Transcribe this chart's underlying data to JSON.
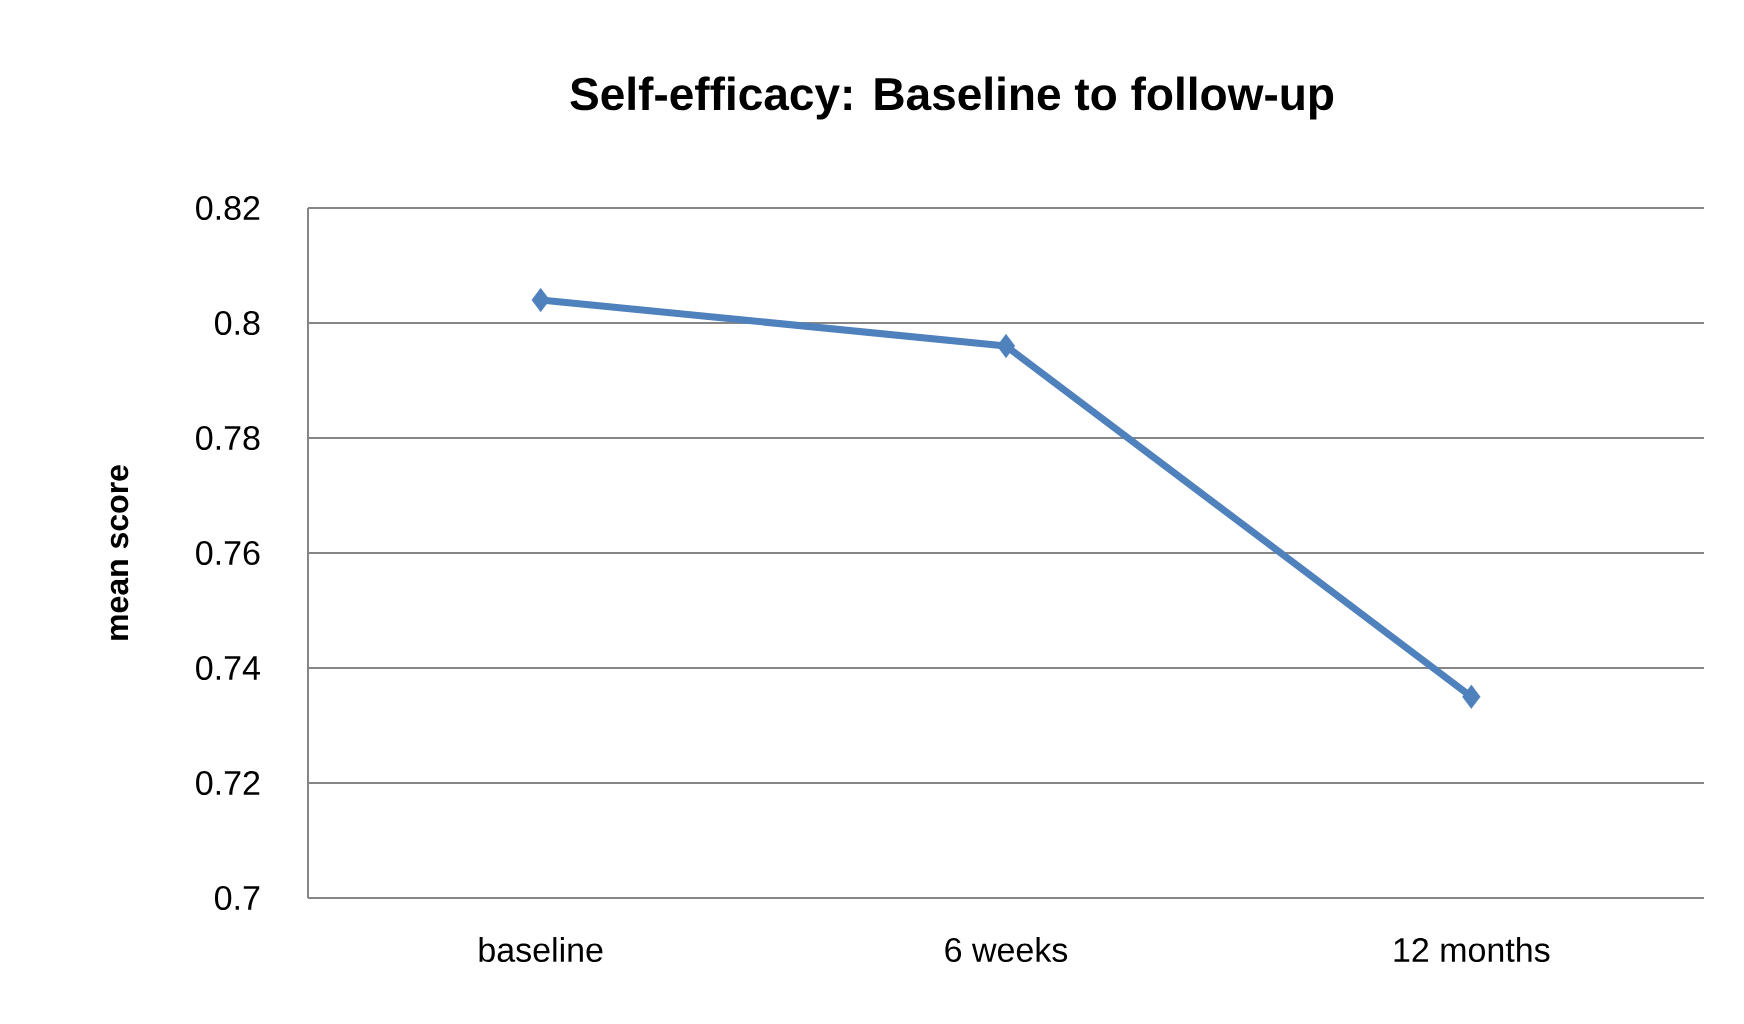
{
  "chart_data": {
    "type": "line",
    "title": "Self-efficacy: Baseline to follow-up",
    "ylabel": "mean score",
    "categories": [
      "baseline",
      "6 weeks",
      "12 months"
    ],
    "values": [
      0.804,
      0.796,
      0.735
    ],
    "color": "#4f81bd",
    "ylim": [
      0.7,
      0.82
    ],
    "yticks": [
      0.7,
      0.72,
      0.74,
      0.76,
      0.78,
      0.8,
      0.82
    ],
    "grid": "y",
    "marker": "diamond",
    "line_style": "solid"
  }
}
